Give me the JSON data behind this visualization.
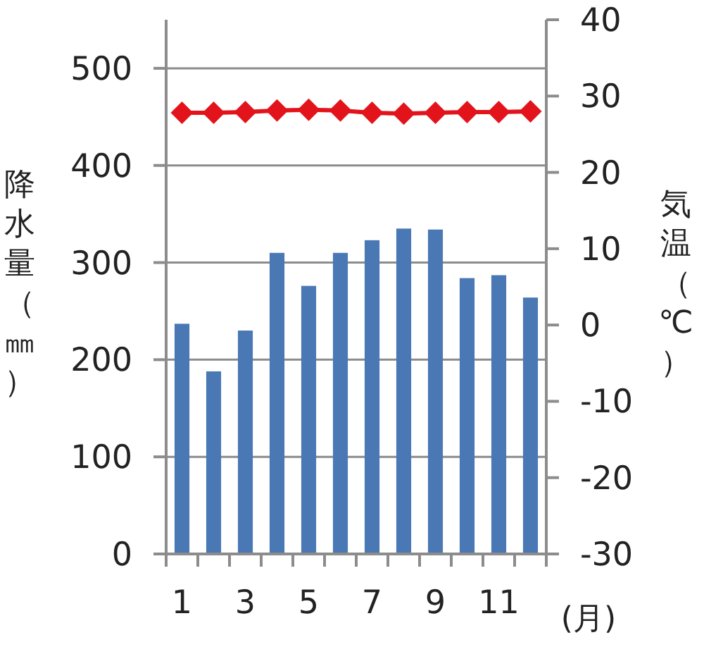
{
  "chart_data": {
    "type": "bar",
    "categories": [
      "1",
      null,
      "3",
      null,
      "5",
      null,
      "7",
      null,
      "9",
      null,
      "11",
      null
    ],
    "xlabel": "(月)",
    "ylabel": "降水量（㎜）",
    "y2label": "気温（℃）",
    "series": [
      {
        "color": "#4a78b5",
        "values": [
          237,
          188,
          230,
          310,
          276,
          310,
          323,
          335,
          334,
          284,
          287,
          264
        ]
      },
      {
        "type": "line",
        "axis": "y2",
        "color": "#e3131b",
        "marker": "diamond",
        "line_style": "solid",
        "values": [
          27.8,
          27.8,
          27.9,
          28.1,
          28.2,
          28.1,
          27.8,
          27.7,
          27.8,
          27.9,
          27.9,
          28.0
        ]
      }
    ],
    "ylim": [
      0,
      550
    ],
    "yticks": [
      0,
      100,
      200,
      300,
      400,
      500
    ],
    "y2lim": [
      -30,
      40
    ],
    "y2ticks": [
      -30,
      -20,
      -10,
      0,
      10,
      20,
      30,
      40
    ],
    "grid": "y"
  }
}
